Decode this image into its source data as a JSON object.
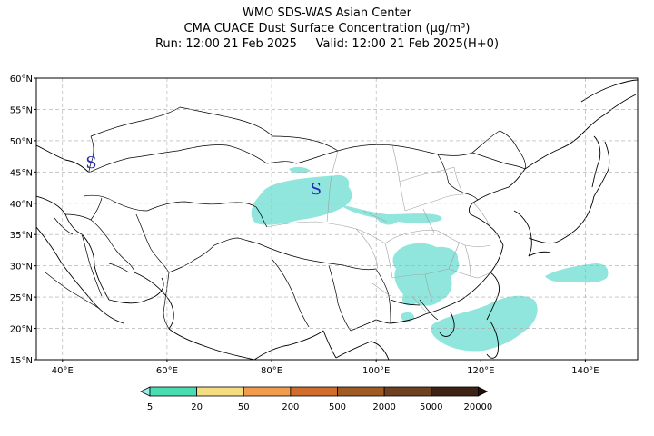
{
  "header": {
    "line1": "WMO SDS-WAS Asian Center",
    "line2": "CMA CUACE Dust Surface Concentration (μg/m³)",
    "line3": "Run: 12:00 21 Feb 2025     Valid: 12:00 21 Feb 2025(H+0)"
  },
  "map": {
    "lon_range": [
      35,
      150
    ],
    "lat_range": [
      15,
      60
    ],
    "lon_ticks": [
      40,
      60,
      80,
      100,
      120,
      140
    ],
    "lat_ticks": [
      15,
      20,
      25,
      30,
      35,
      40,
      45,
      50,
      55,
      60
    ],
    "lon_labels": [
      "40°E",
      "60°E",
      "80°E",
      "100°E",
      "120°E",
      "140°E"
    ],
    "lat_labels": [
      "15°N",
      "20°N",
      "25°N",
      "30°N",
      "35°N",
      "40°N",
      "45°N",
      "50°N",
      "55°N",
      "60°N"
    ],
    "dust_color": "#90e6dc",
    "grid": true,
    "markers": [
      {
        "text": "S",
        "lon": 45.5,
        "lat": 46.5,
        "color": "#2a2ab8"
      },
      {
        "text": "S",
        "lon": 88.5,
        "lat": 42.3,
        "color": "#2a2ab8"
      }
    ]
  },
  "colorbar": {
    "colors": [
      "#a0ece6",
      "#48dcb0",
      "#f4dc80",
      "#f09c4c",
      "#d06c2c",
      "#a05a24",
      "#6e4220",
      "#3e2214",
      "#1e120a"
    ],
    "labels": [
      "5",
      "20",
      "50",
      "200",
      "500",
      "2000",
      "5000",
      "20000"
    ]
  }
}
